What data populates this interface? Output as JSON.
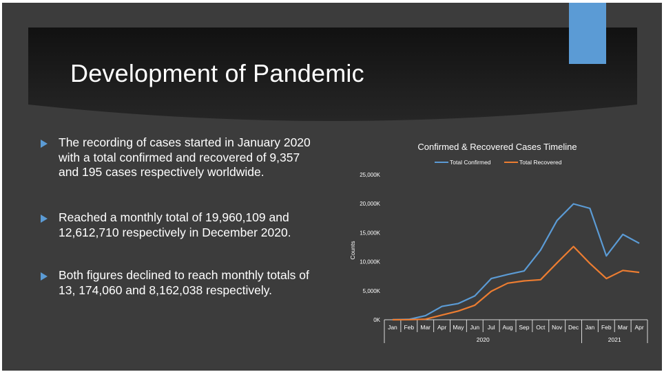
{
  "slide": {
    "title": "Development of Pandemic",
    "colors": {
      "background": "#3c3c3c",
      "accent": "#5b9bd5",
      "banner": "#1c1c1c"
    },
    "bullets": [
      {
        "text": "The recording of cases started in January 2020 with a total confirmed and recovered of 9,357 and 195 cases respectively  worldwide."
      },
      {
        "text": "Reached a monthly total of  19,960,109 and 12,612,710 respectively in December 2020."
      },
      {
        "text": "Both figures declined to reach monthly totals of 13, 174,060 and 8,162,038 respectively."
      }
    ]
  },
  "chart_data": {
    "type": "line",
    "title": "Confirmed & Recovered Cases Timeline",
    "ylabel": "Counts",
    "xlabel": "",
    "ylim": [
      0,
      25000
    ],
    "yticks": [
      {
        "value": 0,
        "label": "0K"
      },
      {
        "value": 5000,
        "label": "5,000K"
      },
      {
        "value": 10000,
        "label": "10,000K"
      },
      {
        "value": 15000,
        "label": "15,000K"
      },
      {
        "value": 20000,
        "label": "20,000K"
      },
      {
        "value": 25000,
        "label": "25,000K"
      }
    ],
    "categories": [
      "Jan",
      "Feb",
      "Mar",
      "Apr",
      "May",
      "Jun",
      "Jul",
      "Aug",
      "Sep",
      "Oct",
      "Nov",
      "Dec",
      "Jan",
      "Feb",
      "Mar",
      "Apr"
    ],
    "year_groups": [
      {
        "label": "2020",
        "count": 12
      },
      {
        "label": "2021",
        "count": 4
      }
    ],
    "legend_position": "top-center",
    "grid": false,
    "series": [
      {
        "name": "Total Confirmed",
        "color": "#5b9bd5",
        "values": [
          9,
          75,
          700,
          2300,
          2800,
          4100,
          7100,
          7800,
          8400,
          12000,
          17100,
          19960,
          19200,
          11000,
          14700,
          13174
        ]
      },
      {
        "name": "Total Recovered",
        "color": "#ed7d31",
        "values": [
          0,
          10,
          100,
          800,
          1500,
          2500,
          4900,
          6300,
          6700,
          6900,
          9800,
          12613,
          9700,
          7100,
          8500,
          8162
        ]
      }
    ]
  }
}
